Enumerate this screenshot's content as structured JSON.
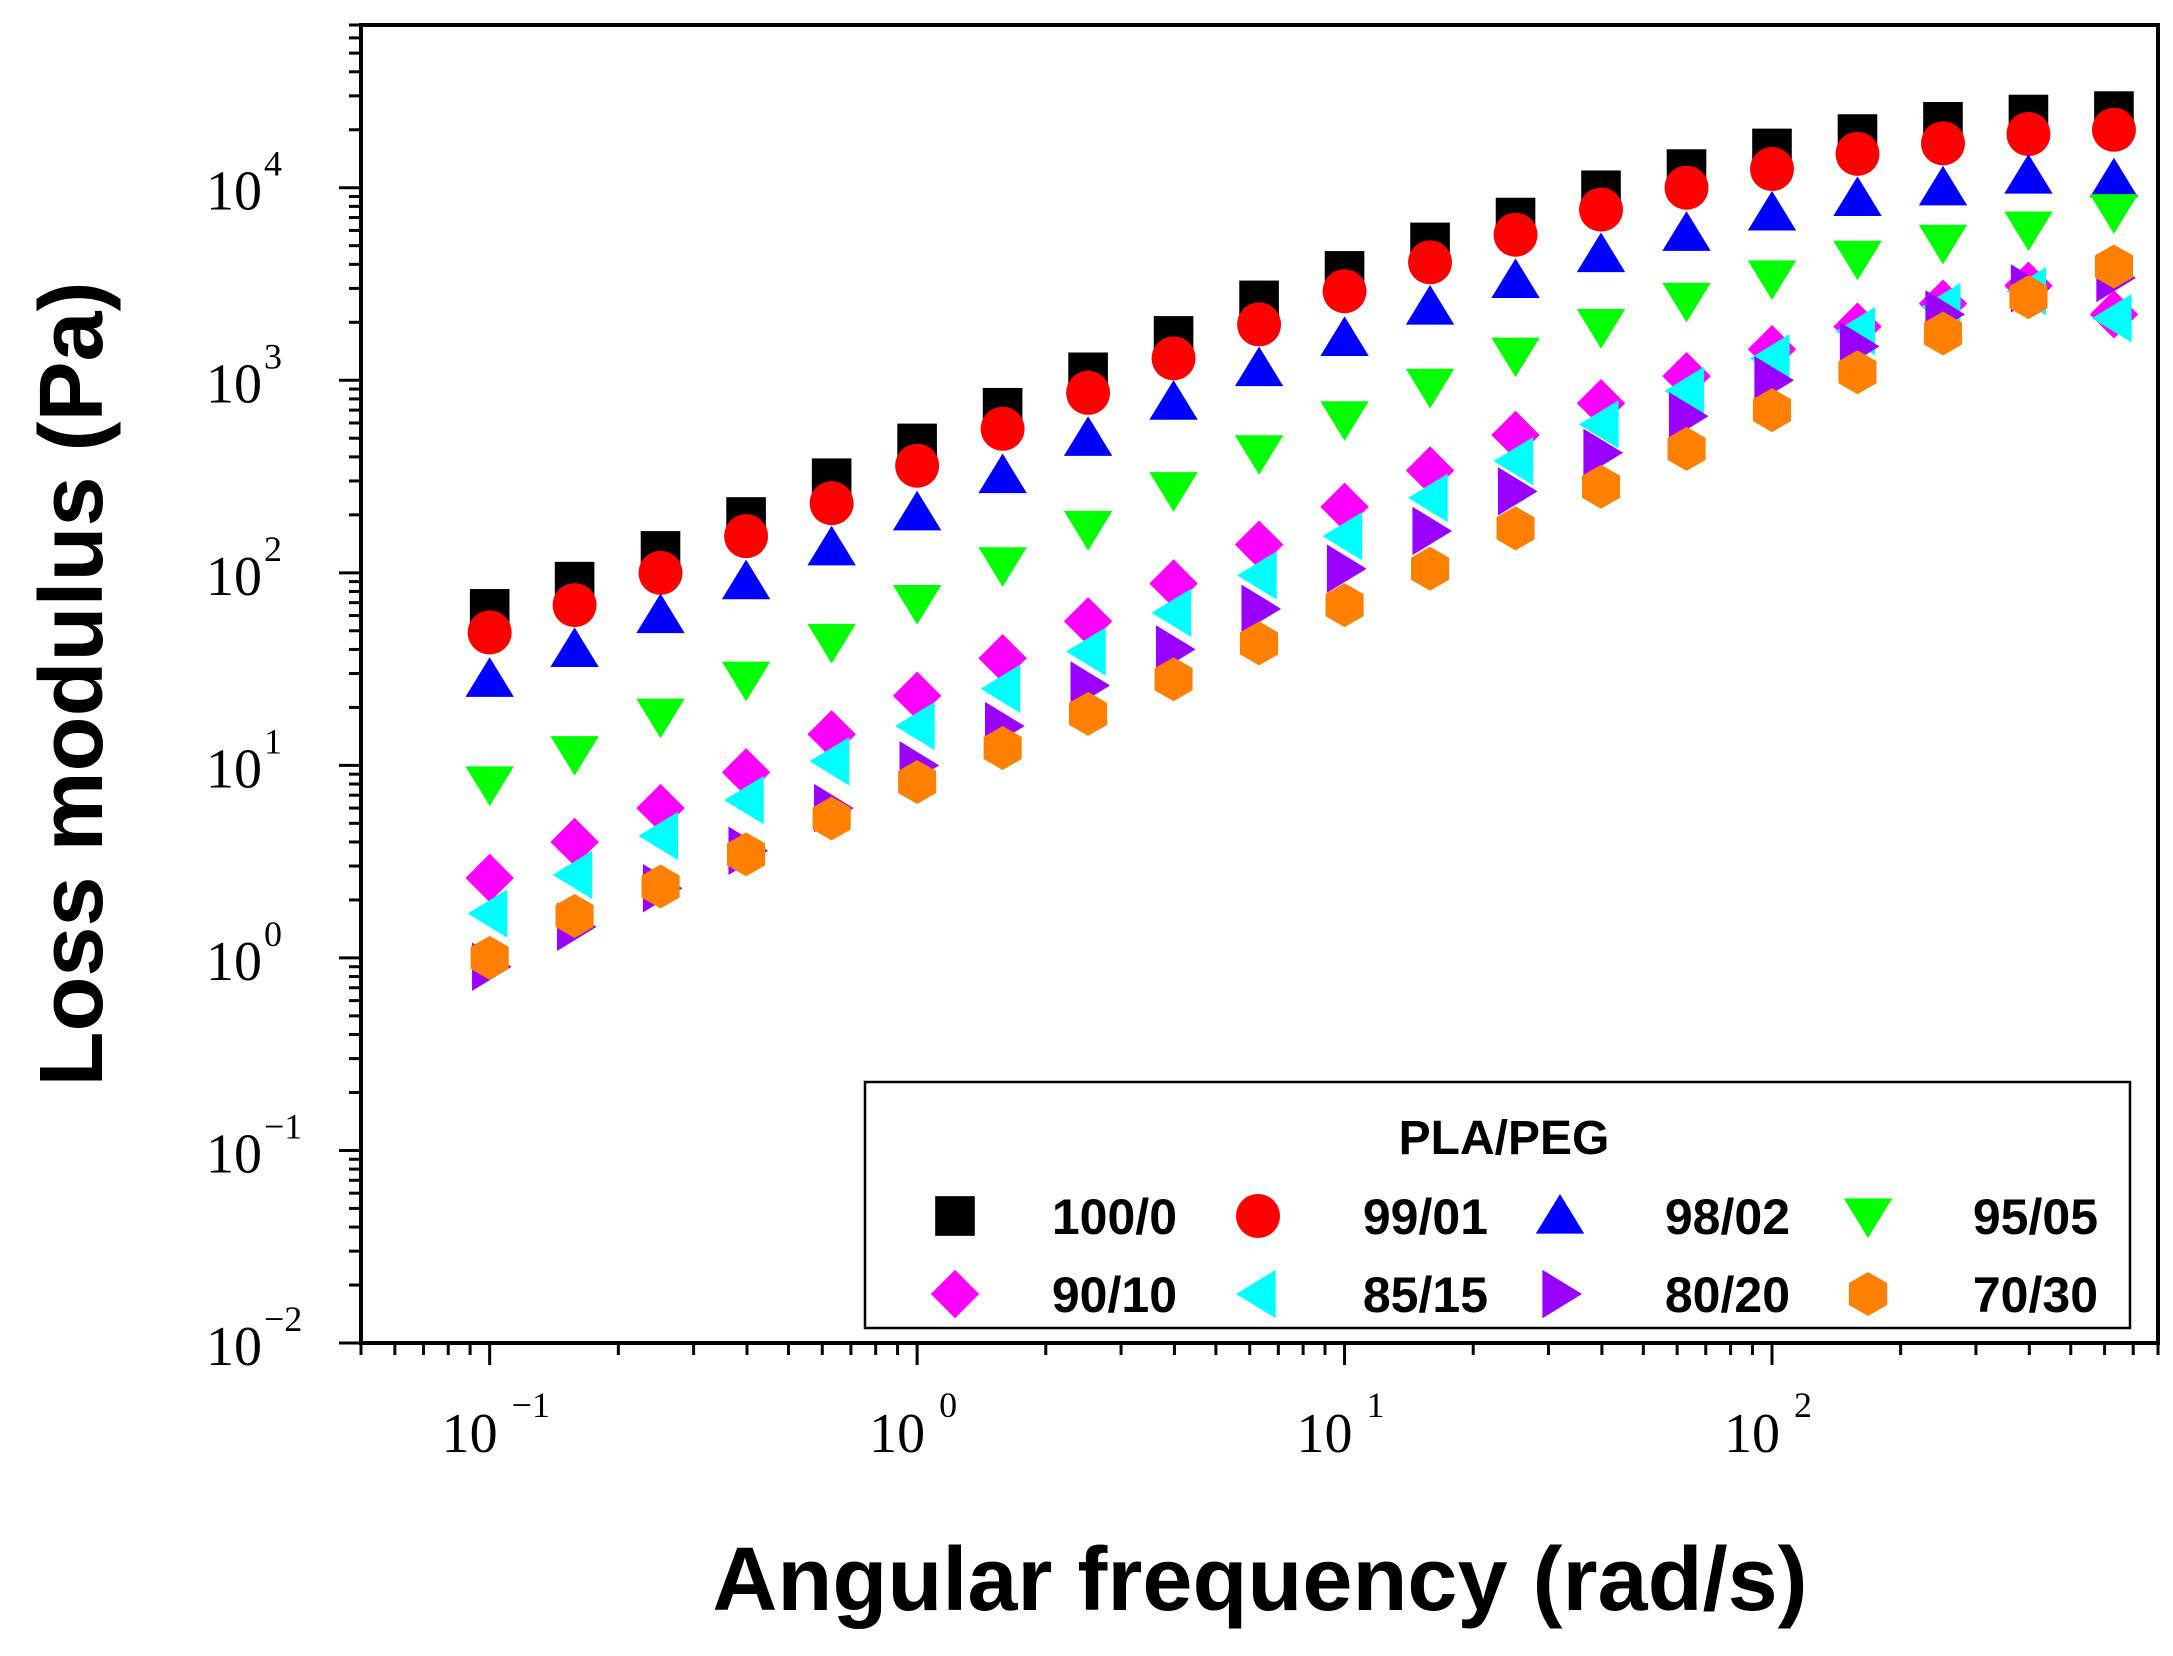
{
  "chart_data": {
    "type": "scatter",
    "xlabel": "Angular frequency (rad/s)",
    "ylabel": "Loss modulus (Pa)",
    "xscale": "log",
    "yscale": "log",
    "xlim": [
      0.05,
      800
    ],
    "ylim": [
      0.01,
      70000
    ],
    "x_ticks": [
      {
        "base": "10",
        "exp": "−1",
        "value": 0.1
      },
      {
        "base": "10",
        "exp": "0",
        "value": 1
      },
      {
        "base": "10",
        "exp": "1",
        "value": 10
      },
      {
        "base": "10",
        "exp": "2",
        "value": 100
      }
    ],
    "y_ticks": [
      {
        "base": "10",
        "exp": "−2",
        "value": 0.01
      },
      {
        "base": "10",
        "exp": "−1",
        "value": 0.1
      },
      {
        "base": "10",
        "exp": "0",
        "value": 1
      },
      {
        "base": "10",
        "exp": "1",
        "value": 10
      },
      {
        "base": "10",
        "exp": "2",
        "value": 100
      },
      {
        "base": "10",
        "exp": "3",
        "value": 1000
      },
      {
        "base": "10",
        "exp": "4",
        "value": 10000
      }
    ],
    "legend": {
      "title": "PLA/PEG",
      "position": "bottom-right"
    },
    "x": [
      0.1,
      0.158,
      0.251,
      0.398,
      0.631,
      1.0,
      1.585,
      2.512,
      3.981,
      6.31,
      10.0,
      15.85,
      25.12,
      39.81,
      63.1,
      100.0,
      158.5,
      251.2,
      398.1,
      631.0
    ],
    "series": [
      {
        "name": "100/0",
        "marker": "square",
        "color": "#000000",
        "values": [
          65,
          90,
          130,
          195,
          310,
          470,
          720,
          1100,
          1700,
          2600,
          3700,
          5200,
          7000,
          9700,
          12500,
          16000,
          19000,
          22000,
          24000,
          25000
        ]
      },
      {
        "name": "99/01",
        "marker": "circle",
        "color": "#ff0000",
        "values": [
          49,
          68,
          100,
          155,
          230,
          360,
          560,
          860,
          1300,
          1950,
          2900,
          4100,
          5700,
          7700,
          10000,
          12500,
          15000,
          17000,
          19000,
          20000
        ]
      },
      {
        "name": "98/02",
        "marker": "triangle-up",
        "color": "#0000ff",
        "values": [
          28,
          40,
          60,
          90,
          135,
          205,
          320,
          500,
          770,
          1150,
          1650,
          2400,
          3300,
          4500,
          5800,
          7400,
          8800,
          10000,
          11500,
          11000
        ]
      },
      {
        "name": "95/05",
        "marker": "triangle-down",
        "color": "#00ff00",
        "values": [
          8,
          11.5,
          18,
          28,
          44,
          70,
          110,
          170,
          270,
          420,
          630,
          930,
          1350,
          1900,
          2600,
          3400,
          4300,
          5200,
          6100,
          7500
        ]
      },
      {
        "name": "90/10",
        "marker": "diamond",
        "color": "#ff00ff",
        "values": [
          2.6,
          4.0,
          6.0,
          9.2,
          14.5,
          23,
          36,
          56,
          88,
          140,
          220,
          340,
          520,
          760,
          1050,
          1450,
          1900,
          2500,
          3100,
          2200
        ]
      },
      {
        "name": "85/15",
        "marker": "triangle-left",
        "color": "#00ffff",
        "values": [
          1.7,
          2.7,
          4.3,
          6.6,
          10.5,
          16,
          25,
          39,
          62,
          97,
          155,
          245,
          380,
          590,
          880,
          1300,
          1800,
          2400,
          2900,
          2100
        ]
      },
      {
        "name": "80/20",
        "marker": "triangle-right",
        "color": "#9900ff",
        "values": [
          0.9,
          1.45,
          2.3,
          3.6,
          6.0,
          10,
          16,
          26,
          40,
          65,
          105,
          165,
          265,
          420,
          650,
          1000,
          1500,
          2200,
          3000,
          3400
        ]
      },
      {
        "name": "70/30",
        "marker": "hexagon",
        "color": "#ff8000",
        "values": [
          1.0,
          1.65,
          2.35,
          3.45,
          5.3,
          8.2,
          12.3,
          18.5,
          28,
          43,
          68,
          105,
          170,
          280,
          440,
          700,
          1100,
          1750,
          2700,
          3900
        ]
      }
    ]
  }
}
